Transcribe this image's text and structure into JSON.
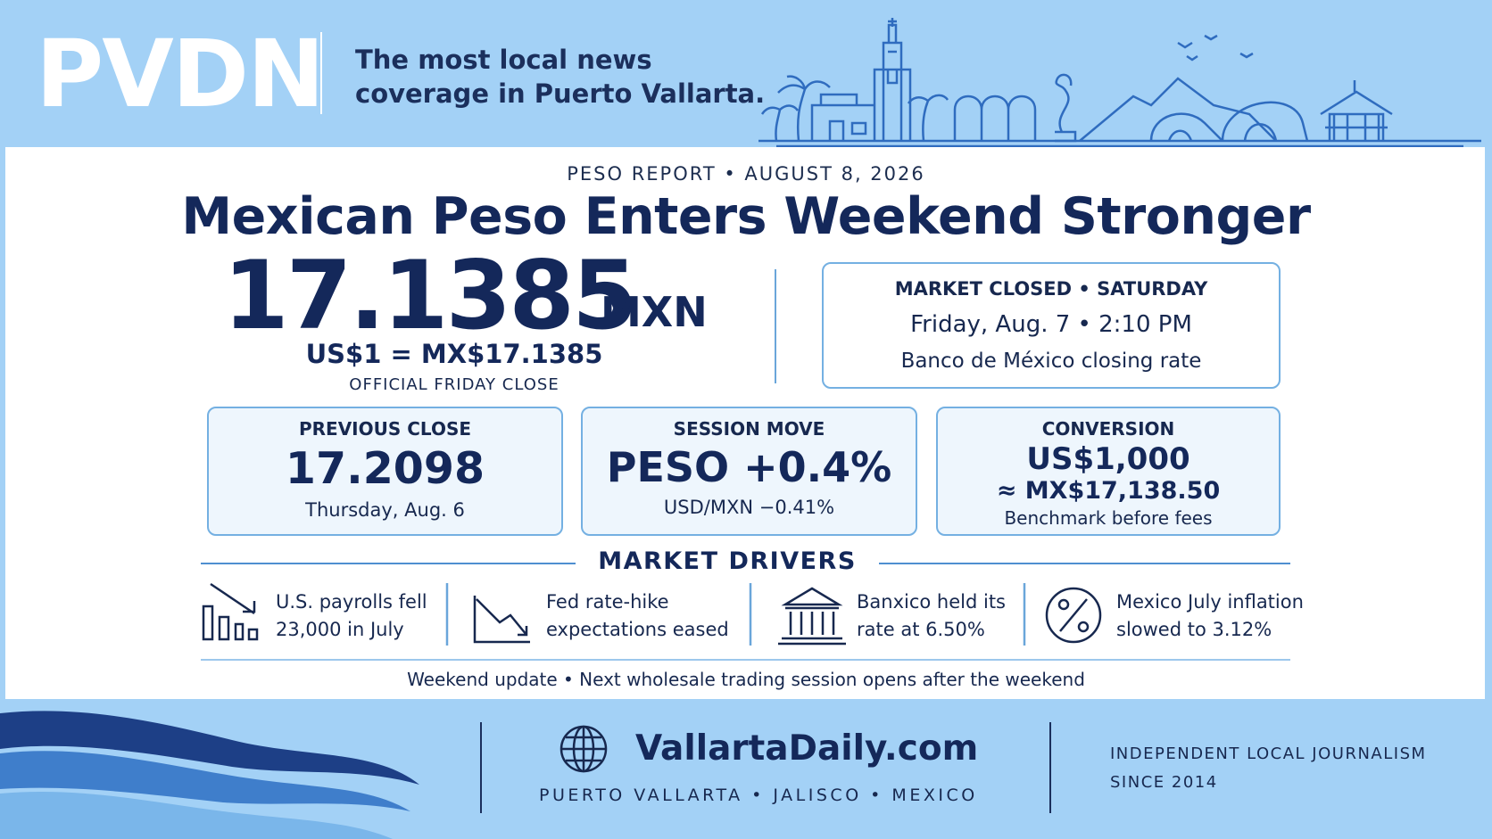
{
  "header": {
    "logo": "PVDN",
    "tagline": [
      "The most local news",
      "coverage in Puerto Vallarta."
    ]
  },
  "report": {
    "kicker": "PESO REPORT • AUGUST 8, 2026",
    "headline": "Mexican Peso Enters Weekend Stronger",
    "rate": "17.1385",
    "currency": "MXN",
    "equation": "US$1 = MX$17.1385",
    "note": "OFFICIAL FRIDAY CLOSE"
  },
  "market_status": {
    "title": "MARKET CLOSED • SATURDAY",
    "time": "Friday, Aug. 7 • 2:10 PM",
    "source": "Banco de México closing rate"
  },
  "cards": [
    {
      "label": "PREVIOUS CLOSE",
      "value": "17.2098",
      "sub": "Thursday, Aug. 6"
    },
    {
      "label": "SESSION MOVE",
      "value": "PESO +0.4%",
      "sub": "USD/MXN −0.41%"
    },
    {
      "label": "CONVERSION",
      "value": "US$1,000",
      "value2": "≈ MX$17,138.50",
      "sub": "Benchmark before fees"
    }
  ],
  "drivers": {
    "title": "MARKET DRIVERS",
    "items": [
      [
        "U.S. payrolls fell",
        "23,000 in July"
      ],
      [
        "Fed rate-hike",
        "expectations eased"
      ],
      [
        "Banxico held its",
        "rate at 6.50%"
      ],
      [
        "Mexico July inflation",
        "slowed to 3.12%"
      ]
    ]
  },
  "footnote": "Weekend update • Next wholesale trading session opens after the weekend",
  "footer": {
    "site": "VallartaDaily.com",
    "location": "PUERTO VALLARTA • JALISCO • MEXICO",
    "tagline": [
      "INDEPENDENT LOCAL JOURNALISM",
      "SINCE 2014"
    ]
  }
}
